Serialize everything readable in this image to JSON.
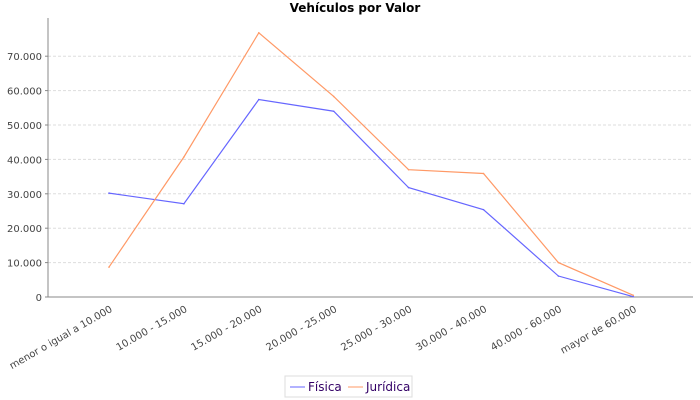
{
  "chart_data": {
    "type": "line",
    "title": "Vehículos por Valor",
    "xlabel": "",
    "ylabel": "",
    "categories": [
      "menor o igual a 10.000",
      "10.000 - 15.000",
      "15.000 - 20.000",
      "20.000 - 25.000",
      "25.000 - 30.000",
      "30.000 - 40.000",
      "40.000 - 60.000",
      "mayor de 60.000"
    ],
    "ylim": [
      0,
      79000
    ],
    "yticks": [
      0,
      10000,
      20000,
      30000,
      40000,
      50000,
      60000,
      70000
    ],
    "ytick_labels": [
      "0",
      "10.000",
      "20.000",
      "30.000",
      "40.000",
      "50.000",
      "60.000",
      "70.000"
    ],
    "grid": true,
    "legend_position": "bottom",
    "series": [
      {
        "name": "Física",
        "color": "#6666ff",
        "values": [
          30200,
          27100,
          57400,
          54000,
          31800,
          25400,
          6100,
          100
        ]
      },
      {
        "name": "Jurídica",
        "color": "#ff9966",
        "values": [
          8700,
          40700,
          76800,
          58300,
          37000,
          35900,
          10000,
          500
        ]
      }
    ]
  }
}
